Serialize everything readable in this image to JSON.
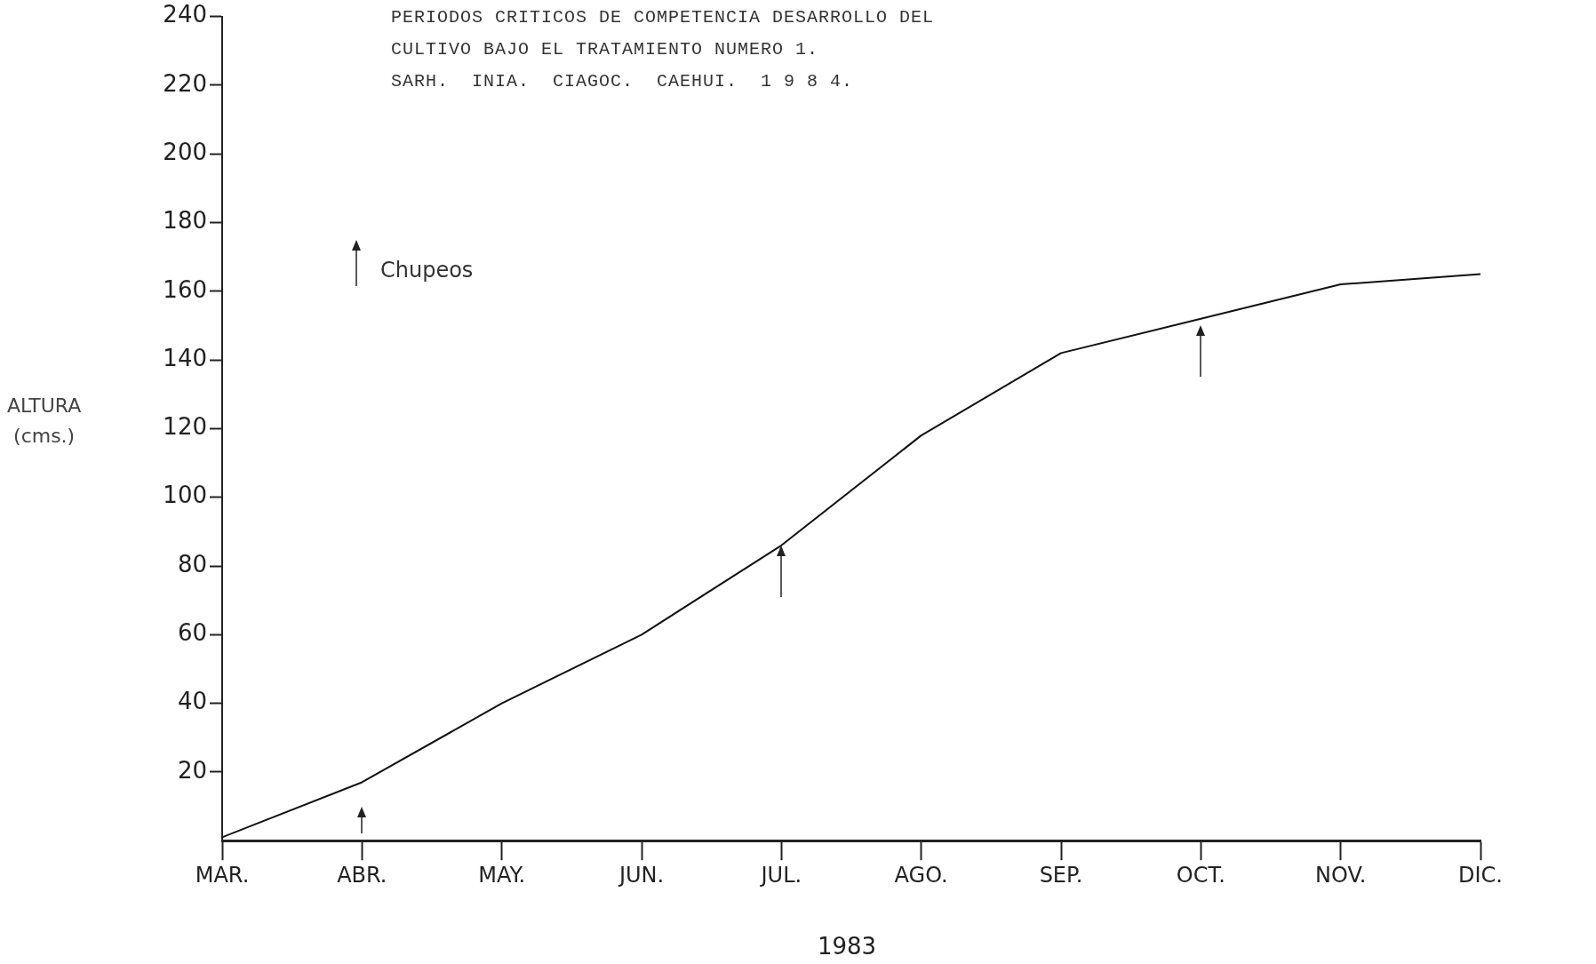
{
  "chart_data": {
    "type": "line",
    "title": "PERIODOS CRITICOS DE COMPETENCIA DESARROLLO DEL\nCULTIVO BAJO EL TRATAMIENTO NUMERO 1.\nSARH.  INIA.  CIAGOC.  CAEHUI.  1 9 8 4.",
    "xlabel": "1983",
    "ylabel": "ALTURA\n(cms.)",
    "categories": [
      "MAR.",
      "ABR.",
      "MAY.",
      "JUN.",
      "JUL.",
      "AGO.",
      "SEP.",
      "OCT.",
      "NOV.",
      "DIC."
    ],
    "series": [
      {
        "color": "#111111",
        "values": [
          1,
          17,
          40,
          60,
          86,
          118,
          142,
          152,
          162,
          165
        ]
      }
    ],
    "ylim": [
      0,
      240
    ],
    "yticks": [
      20,
      40,
      60,
      80,
      100,
      120,
      140,
      160,
      180,
      200,
      220,
      240
    ],
    "annotations": [
      "Chupeos"
    ],
    "grid": false,
    "legend": false,
    "marker": "none",
    "line_style": "solid"
  }
}
